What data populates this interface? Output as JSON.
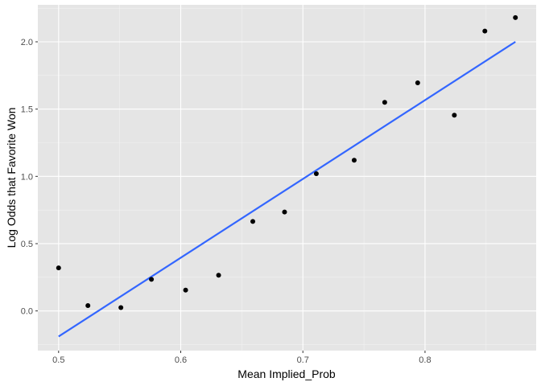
{
  "chart_data": {
    "type": "scatter",
    "xlabel": "Mean Implied_Prob",
    "ylabel": "Log Odds that Favorite Won",
    "xlim": [
      0.483,
      0.891
    ],
    "ylim": [
      -0.295,
      2.275
    ],
    "x_ticks": [
      0.5,
      0.6,
      0.7,
      0.8
    ],
    "x_tick_labels": [
      "0.5",
      "0.6",
      "0.7",
      "0.8"
    ],
    "y_ticks": [
      0.0,
      0.5,
      1.0,
      1.5,
      2.0
    ],
    "y_tick_labels": [
      "0.0",
      "0.5",
      "1.0",
      "1.5",
      "2.0"
    ],
    "grid": true,
    "panel_background": "#e5e5e5",
    "point_color": "#000000",
    "fit_line_color": "#3366ff",
    "points": [
      {
        "x": 0.5,
        "y": 0.32
      },
      {
        "x": 0.524,
        "y": 0.04
      },
      {
        "x": 0.551,
        "y": 0.025
      },
      {
        "x": 0.576,
        "y": 0.235
      },
      {
        "x": 0.604,
        "y": 0.155
      },
      {
        "x": 0.631,
        "y": 0.265
      },
      {
        "x": 0.659,
        "y": 0.665
      },
      {
        "x": 0.685,
        "y": 0.735
      },
      {
        "x": 0.711,
        "y": 1.02
      },
      {
        "x": 0.742,
        "y": 1.12
      },
      {
        "x": 0.767,
        "y": 1.55
      },
      {
        "x": 0.794,
        "y": 1.695
      },
      {
        "x": 0.824,
        "y": 1.455
      },
      {
        "x": 0.849,
        "y": 2.08
      },
      {
        "x": 0.874,
        "y": 2.18
      }
    ],
    "fit_line": {
      "x": [
        0.5,
        0.874
      ],
      "y": [
        -0.19,
        2.0
      ]
    }
  }
}
